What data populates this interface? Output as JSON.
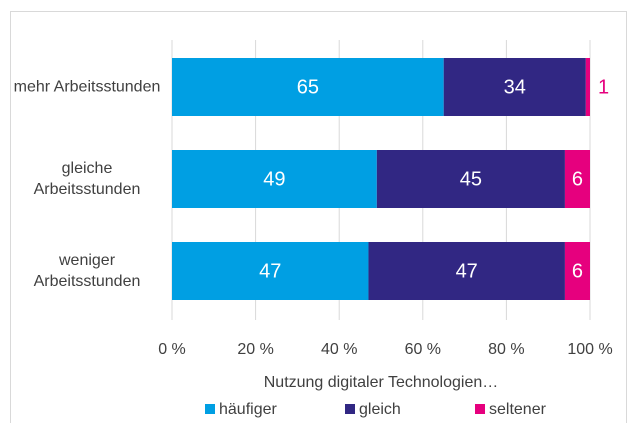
{
  "chart_data": {
    "type": "stacked-bar-horizontal",
    "categories": [
      "mehr Arbeitsstunden",
      "gleiche Arbeitsstunden",
      "weniger Arbeitsstunden"
    ],
    "series": [
      {
        "name": "häufiger",
        "color": "#009fe3",
        "values": [
          65,
          49,
          47
        ]
      },
      {
        "name": "gleich",
        "color": "#312783",
        "values": [
          34,
          45,
          47
        ]
      },
      {
        "name": "seltener",
        "color": "#e6007e",
        "values": [
          1,
          6,
          6
        ]
      }
    ],
    "xlabel": "Nutzung digitaler Technologien…",
    "xlim": [
      0,
      100
    ],
    "xticks": [
      {
        "value": 0,
        "label": "0 %"
      },
      {
        "value": 20,
        "label": "20 %"
      },
      {
        "value": 40,
        "label": "40 %"
      },
      {
        "value": 60,
        "label": "60 %"
      },
      {
        "value": 80,
        "label": "80 %"
      },
      {
        "value": 100,
        "label": "100 %"
      }
    ],
    "grid": true,
    "legend": "bottom"
  }
}
